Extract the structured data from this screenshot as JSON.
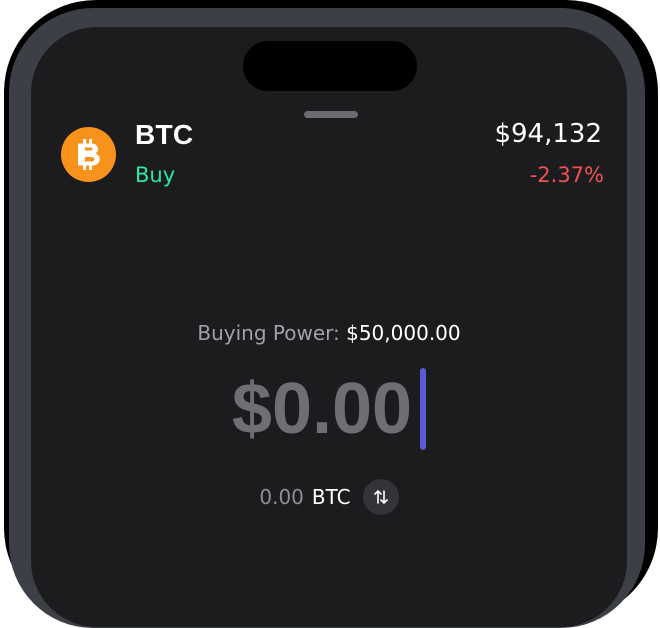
{
  "asset": {
    "symbol": "BTC",
    "action": "Buy",
    "price": "$94,132",
    "change": "-2.37%",
    "icon": "bitcoin-icon",
    "icon_color": "#f7931a"
  },
  "buying_power": {
    "label": "Buying Power:",
    "value": "$50,000.00"
  },
  "order": {
    "amount": "$0.00",
    "converted_amount": "0.00",
    "converted_unit": "BTC",
    "swap_icon": "swap-vertical-icon"
  },
  "colors": {
    "background": "#1c1c1e",
    "buy_green": "#2ee6a6",
    "negative_red": "#f05252",
    "caret_accent": "#5b5bd6"
  }
}
